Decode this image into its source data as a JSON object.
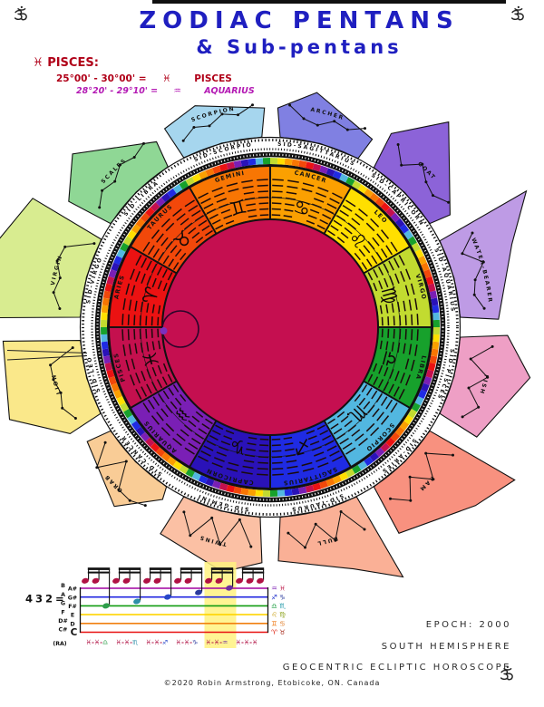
{
  "title": {
    "line1": "ZODIAC PENTANS",
    "line2": "& Sub-pentans",
    "color": "#1F1FC0"
  },
  "corner_symbol": "Om",
  "pisces_block": {
    "header_glyph": "♓",
    "header_text": "PISCES:",
    "header_color": "#B00018",
    "line1": {
      "range": "25°00' - 30°00' =",
      "glyph": "♓",
      "name": "PISCES",
      "color": "#B00018"
    },
    "line2": {
      "range": "28°20' - 29°10' =",
      "glyph": "♒",
      "name": "AQUARIUS",
      "color": "#B318B3"
    }
  },
  "wheel": {
    "center_color": "#C50F50",
    "signs": [
      {
        "name": "ARIES",
        "glyph": "♈",
        "color": "#EB1212",
        "sid": "SID-VIRGO",
        "constellation": {
          "name": "VIRGIN",
          "color": "#D8EC90"
        }
      },
      {
        "name": "TAURUS",
        "glyph": "♉",
        "color": "#F2480A",
        "sid": "SID-LIBRA",
        "constellation": {
          "name": "SCALES",
          "color": "#8FD795"
        }
      },
      {
        "name": "GEMINI",
        "glyph": "♊",
        "color": "#F87603",
        "sid": "SID-SCORPIO",
        "constellation": {
          "name": "SCORPION",
          "color": "#A6D6EE"
        }
      },
      {
        "name": "CANCER",
        "glyph": "♋",
        "color": "#FBA001",
        "sid": "SID-SAGITTARIUS",
        "constellation": {
          "name": "ARCHER",
          "color": "#8080E2"
        }
      },
      {
        "name": "LEO",
        "glyph": "♌",
        "color": "#FFDF00",
        "sid": "SID-CAPRICORN",
        "constellation": {
          "name": "GOAT",
          "color": "#8C63D8"
        }
      },
      {
        "name": "VIRGO",
        "glyph": "♍",
        "color": "#C2DB30",
        "sid": "SID-AQUARIUS",
        "constellation": {
          "name": "WATER-BEARER",
          "color": "#BE9BE5"
        }
      },
      {
        "name": "LIBRA",
        "glyph": "♎",
        "color": "#17A12C",
        "sid": "SID-PISCES",
        "constellation": {
          "name": "FISH",
          "color": "#EE9FC5"
        }
      },
      {
        "name": "SCORPIO",
        "glyph": "♏",
        "color": "#52B7E0",
        "sid": "SID-ARIES",
        "constellation": {
          "name": "RAM",
          "color": "#F8917F"
        }
      },
      {
        "name": "SAGITTARIUS",
        "glyph": "♐",
        "color": "#1F2BE3",
        "sid": "SID-TAURUS",
        "constellation": {
          "name": "BULL",
          "color": "#FAB096"
        }
      },
      {
        "name": "CAPRICORN",
        "glyph": "♑",
        "color": "#2A12B8",
        "sid": "SID-GEMINI",
        "constellation": {
          "name": "TWINS",
          "color": "#FBC0A4"
        }
      },
      {
        "name": "AQUARIUS",
        "glyph": "♒",
        "color": "#7A1FB5",
        "sid": "SID-CANCER",
        "constellation": {
          "name": "CRAB",
          "color": "#F9CC96"
        }
      },
      {
        "name": "PISCES",
        "glyph": "♓",
        "color": "#C4104E",
        "sid": "SID-LEO",
        "constellation": {
          "name": "LION",
          "color": "#FAE88A"
        }
      }
    ],
    "micro_rainbow": [
      "#17A12C",
      "#52B7E0",
      "#1F2BE3",
      "#2A12B8",
      "#7A1FB5",
      "#C4104E",
      "#EB1212",
      "#F2480A",
      "#F87603",
      "#FBA001",
      "#FFDF00",
      "#C2DB30"
    ]
  },
  "music": {
    "tuning_label": "432=",
    "ra_label": "(RA)",
    "left_letters": [
      "B",
      "A",
      "G",
      "F",
      "D#",
      "C#"
    ],
    "staff_lines": [
      {
        "note": "A#",
        "color": "#A000A0"
      },
      {
        "note": "G#",
        "color": "#2025E0"
      },
      {
        "note": "F#",
        "color": "#109C10"
      },
      {
        "note": "E",
        "color": "#FFD400"
      },
      {
        "note": "D",
        "color": "#F08010"
      },
      {
        "note": "C",
        "color": "#E81010"
      }
    ],
    "note_color": "#B01244",
    "groups": [
      {
        "notes": [
          "♓",
          "♓",
          "♎"
        ],
        "third_color": "#2E9E4B",
        "highlight": false
      },
      {
        "notes": [
          "♓",
          "♓",
          "♏"
        ],
        "third_color": "#2E8FA8",
        "highlight": false
      },
      {
        "notes": [
          "♓",
          "♓",
          "♐"
        ],
        "third_color": "#2847C8",
        "highlight": false
      },
      {
        "notes": [
          "♓",
          "♓",
          "♑"
        ],
        "third_color": "#2A3A9E",
        "highlight": false
      },
      {
        "notes": [
          "♓",
          "♓",
          "♒"
        ],
        "third_color": "#6B2FA0",
        "highlight": true
      },
      {
        "notes": [
          "♓",
          "♓",
          "♓"
        ],
        "third_color": "#B01244",
        "highlight": false
      }
    ],
    "highlight_color": "#FFF280",
    "glyph_rows": [
      {
        "l": "♒",
        "lc": "#8833BB",
        "r": "♓",
        "rc": "#BB1144"
      },
      {
        "l": "♐",
        "lc": "#2233CC",
        "r": "♑",
        "rc": "#223399"
      },
      {
        "l": "♎",
        "lc": "#22A044",
        "r": "♏",
        "rc": "#2299AA"
      },
      {
        "l": "♌",
        "lc": "#C8A012",
        "r": "♍",
        "rc": "#8FA521"
      },
      {
        "l": "♊",
        "lc": "#EE7711",
        "r": "♋",
        "rc": "#E07820"
      },
      {
        "l": "♈",
        "lc": "#DD2211",
        "r": "♉",
        "rc": "#A22010"
      }
    ]
  },
  "footer": {
    "epoch": "EPOCH: 2000",
    "hemisphere": "SOUTH HEMISPHERE",
    "type": "GEOCENTRIC ECLIPTIC HOROSCOPE",
    "copyright": "©2020 Robin Armstrong, Etobicoke, ON. Canada"
  }
}
